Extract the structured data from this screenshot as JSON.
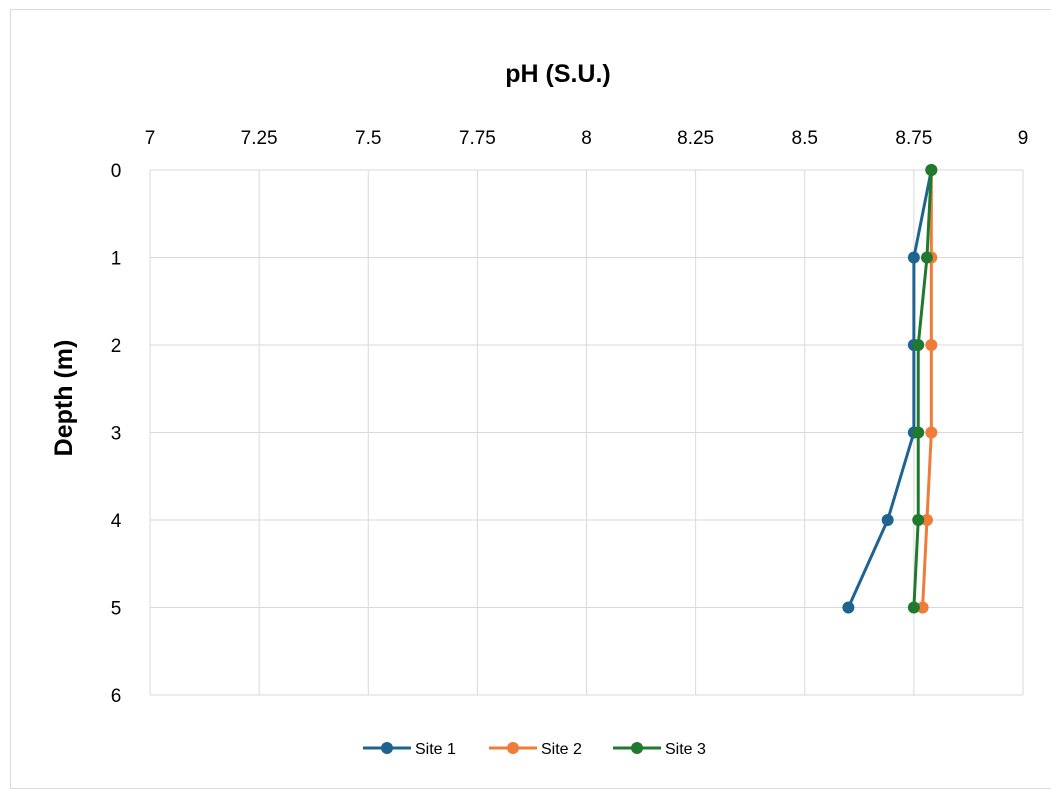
{
  "chart_data": {
    "type": "line",
    "title": "pH (S.U.)",
    "xlabel": "pH (S.U.)",
    "ylabel": "Depth (m)",
    "x_axis_position": "top",
    "y_axis_inverted": true,
    "xlim": [
      7,
      9
    ],
    "ylim": [
      0,
      6
    ],
    "x_ticks": [
      "7",
      "7.25",
      "7.5",
      "7.75",
      "8",
      "8.25",
      "8.5",
      "8.75",
      "9"
    ],
    "x_tick_values": [
      7,
      7.25,
      7.5,
      7.75,
      8,
      8.25,
      8.5,
      8.75,
      9
    ],
    "y_ticks": [
      "0",
      "1",
      "2",
      "3",
      "4",
      "5",
      "6"
    ],
    "y_tick_values": [
      0,
      1,
      2,
      3,
      4,
      5,
      6
    ],
    "grid": true,
    "legend_position": "bottom",
    "series": [
      {
        "name": "Site 1",
        "color": "#1f6391",
        "x": [
          8.79,
          8.75,
          8.75,
          8.75,
          8.69,
          8.6
        ],
        "y": [
          0,
          1,
          2,
          3,
          4,
          5
        ]
      },
      {
        "name": "Site 2",
        "color": "#f07c3a",
        "x": [
          8.79,
          8.79,
          8.79,
          8.79,
          8.78,
          8.77
        ],
        "y": [
          0,
          1,
          2,
          3,
          4,
          5
        ]
      },
      {
        "name": "Site 3",
        "color": "#1f7a2e",
        "x": [
          8.79,
          8.78,
          8.76,
          8.76,
          8.76,
          8.75
        ],
        "y": [
          0,
          1,
          2,
          3,
          4,
          5
        ]
      }
    ]
  }
}
